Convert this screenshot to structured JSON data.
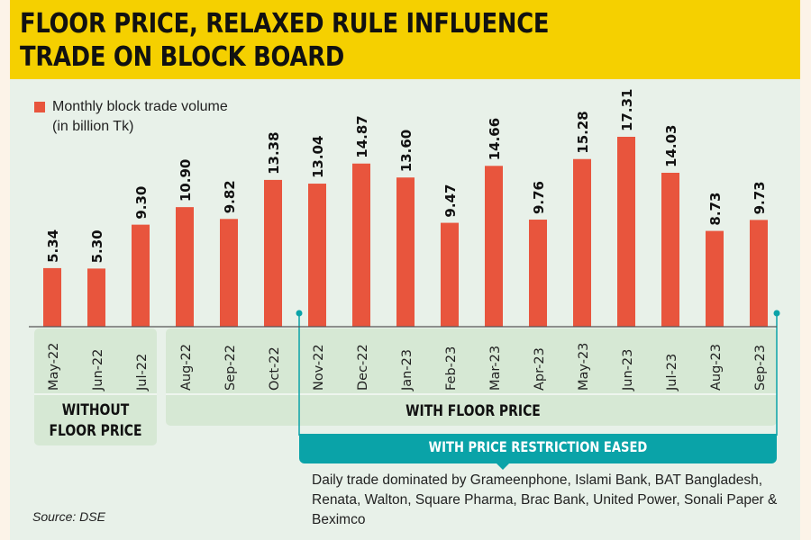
{
  "title_line1": "FLOOR PRICE, RELAXED RULE INFLUENCE",
  "title_line2": "TRADE ON BLOCK BOARD",
  "legend": {
    "line1": "Monthly block trade volume",
    "line2": "(in billion Tk)"
  },
  "periods": {
    "without_floor": {
      "line1": "WITHOUT",
      "line2": "FLOOR PRICE"
    },
    "with_floor": "WITH FLOOR PRICE",
    "eased": "WITH PRICE RESTRICTION EASED"
  },
  "note": "Daily trade dominated by Grameenphone, Islami Bank, BAT Bangladesh, Renata, Walton, Square Pharma, Brac Bank, United Power, Sonali Paper & Beximco",
  "source": "Source: DSE",
  "colors": {
    "bar": "#e8553d",
    "accent": "#0aa3a8",
    "header": "#f5d000"
  },
  "chart_data": {
    "type": "bar",
    "title": "FLOOR PRICE, RELAXED RULE INFLUENCE TRADE ON BLOCK BOARD",
    "ylabel": "Monthly block trade volume (in billion Tk)",
    "categories": [
      "May-22",
      "Jun-22",
      "Jul-22",
      "Aug-22",
      "Sep-22",
      "Oct-22",
      "Nov-22",
      "Dec-22",
      "Jan-23",
      "Feb-23",
      "Mar-23",
      "Apr-23",
      "May-23",
      "Jun-23",
      "Jul-23",
      "Aug-23",
      "Sep-23"
    ],
    "values": [
      5.34,
      5.3,
      9.3,
      10.9,
      9.82,
      13.38,
      13.04,
      14.87,
      13.6,
      9.47,
      14.66,
      9.76,
      15.28,
      17.31,
      14.03,
      8.73,
      9.73
    ],
    "labels": [
      "5.34",
      "5.30",
      "9.30",
      "10.90",
      "9.82",
      "13.38",
      "13.04",
      "14.87",
      "13.60",
      "9.47",
      "14.66",
      "9.76",
      "15.28",
      "17.31",
      "14.03",
      "8.73",
      "9.73"
    ],
    "ylim": [
      0,
      18
    ],
    "grid": false
  }
}
